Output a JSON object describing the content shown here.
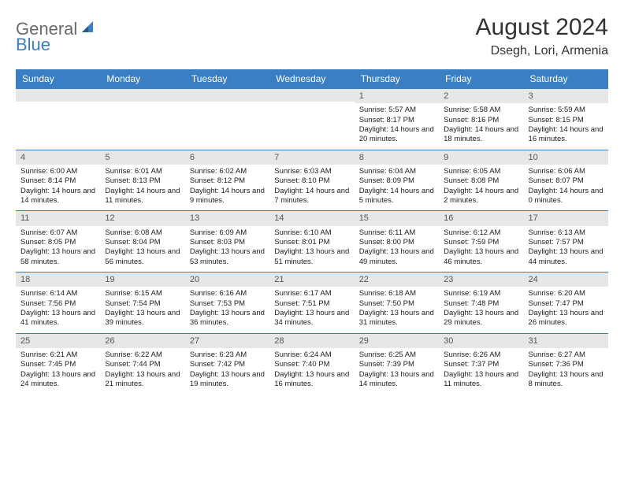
{
  "logo": {
    "text1": "General",
    "text2": "Blue"
  },
  "title": "August 2024",
  "location": "Dsegh, Lori, Armenia",
  "colors": {
    "header_bg": "#3a7fc4",
    "header_fg": "#ffffff",
    "daynum_bg": "#e7e7e7",
    "border": "#3a7fc4",
    "text": "#222222"
  },
  "day_names": [
    "Sunday",
    "Monday",
    "Tuesday",
    "Wednesday",
    "Thursday",
    "Friday",
    "Saturday"
  ],
  "weeks": [
    [
      {
        "n": "",
        "sr": "",
        "ss": "",
        "dl": ""
      },
      {
        "n": "",
        "sr": "",
        "ss": "",
        "dl": ""
      },
      {
        "n": "",
        "sr": "",
        "ss": "",
        "dl": ""
      },
      {
        "n": "",
        "sr": "",
        "ss": "",
        "dl": ""
      },
      {
        "n": "1",
        "sr": "Sunrise: 5:57 AM",
        "ss": "Sunset: 8:17 PM",
        "dl": "Daylight: 14 hours and 20 minutes."
      },
      {
        "n": "2",
        "sr": "Sunrise: 5:58 AM",
        "ss": "Sunset: 8:16 PM",
        "dl": "Daylight: 14 hours and 18 minutes."
      },
      {
        "n": "3",
        "sr": "Sunrise: 5:59 AM",
        "ss": "Sunset: 8:15 PM",
        "dl": "Daylight: 14 hours and 16 minutes."
      }
    ],
    [
      {
        "n": "4",
        "sr": "Sunrise: 6:00 AM",
        "ss": "Sunset: 8:14 PM",
        "dl": "Daylight: 14 hours and 14 minutes."
      },
      {
        "n": "5",
        "sr": "Sunrise: 6:01 AM",
        "ss": "Sunset: 8:13 PM",
        "dl": "Daylight: 14 hours and 11 minutes."
      },
      {
        "n": "6",
        "sr": "Sunrise: 6:02 AM",
        "ss": "Sunset: 8:12 PM",
        "dl": "Daylight: 14 hours and 9 minutes."
      },
      {
        "n": "7",
        "sr": "Sunrise: 6:03 AM",
        "ss": "Sunset: 8:10 PM",
        "dl": "Daylight: 14 hours and 7 minutes."
      },
      {
        "n": "8",
        "sr": "Sunrise: 6:04 AM",
        "ss": "Sunset: 8:09 PM",
        "dl": "Daylight: 14 hours and 5 minutes."
      },
      {
        "n": "9",
        "sr": "Sunrise: 6:05 AM",
        "ss": "Sunset: 8:08 PM",
        "dl": "Daylight: 14 hours and 2 minutes."
      },
      {
        "n": "10",
        "sr": "Sunrise: 6:06 AM",
        "ss": "Sunset: 8:07 PM",
        "dl": "Daylight: 14 hours and 0 minutes."
      }
    ],
    [
      {
        "n": "11",
        "sr": "Sunrise: 6:07 AM",
        "ss": "Sunset: 8:05 PM",
        "dl": "Daylight: 13 hours and 58 minutes."
      },
      {
        "n": "12",
        "sr": "Sunrise: 6:08 AM",
        "ss": "Sunset: 8:04 PM",
        "dl": "Daylight: 13 hours and 56 minutes."
      },
      {
        "n": "13",
        "sr": "Sunrise: 6:09 AM",
        "ss": "Sunset: 8:03 PM",
        "dl": "Daylight: 13 hours and 53 minutes."
      },
      {
        "n": "14",
        "sr": "Sunrise: 6:10 AM",
        "ss": "Sunset: 8:01 PM",
        "dl": "Daylight: 13 hours and 51 minutes."
      },
      {
        "n": "15",
        "sr": "Sunrise: 6:11 AM",
        "ss": "Sunset: 8:00 PM",
        "dl": "Daylight: 13 hours and 49 minutes."
      },
      {
        "n": "16",
        "sr": "Sunrise: 6:12 AM",
        "ss": "Sunset: 7:59 PM",
        "dl": "Daylight: 13 hours and 46 minutes."
      },
      {
        "n": "17",
        "sr": "Sunrise: 6:13 AM",
        "ss": "Sunset: 7:57 PM",
        "dl": "Daylight: 13 hours and 44 minutes."
      }
    ],
    [
      {
        "n": "18",
        "sr": "Sunrise: 6:14 AM",
        "ss": "Sunset: 7:56 PM",
        "dl": "Daylight: 13 hours and 41 minutes."
      },
      {
        "n": "19",
        "sr": "Sunrise: 6:15 AM",
        "ss": "Sunset: 7:54 PM",
        "dl": "Daylight: 13 hours and 39 minutes."
      },
      {
        "n": "20",
        "sr": "Sunrise: 6:16 AM",
        "ss": "Sunset: 7:53 PM",
        "dl": "Daylight: 13 hours and 36 minutes."
      },
      {
        "n": "21",
        "sr": "Sunrise: 6:17 AM",
        "ss": "Sunset: 7:51 PM",
        "dl": "Daylight: 13 hours and 34 minutes."
      },
      {
        "n": "22",
        "sr": "Sunrise: 6:18 AM",
        "ss": "Sunset: 7:50 PM",
        "dl": "Daylight: 13 hours and 31 minutes."
      },
      {
        "n": "23",
        "sr": "Sunrise: 6:19 AM",
        "ss": "Sunset: 7:48 PM",
        "dl": "Daylight: 13 hours and 29 minutes."
      },
      {
        "n": "24",
        "sr": "Sunrise: 6:20 AM",
        "ss": "Sunset: 7:47 PM",
        "dl": "Daylight: 13 hours and 26 minutes."
      }
    ],
    [
      {
        "n": "25",
        "sr": "Sunrise: 6:21 AM",
        "ss": "Sunset: 7:45 PM",
        "dl": "Daylight: 13 hours and 24 minutes."
      },
      {
        "n": "26",
        "sr": "Sunrise: 6:22 AM",
        "ss": "Sunset: 7:44 PM",
        "dl": "Daylight: 13 hours and 21 minutes."
      },
      {
        "n": "27",
        "sr": "Sunrise: 6:23 AM",
        "ss": "Sunset: 7:42 PM",
        "dl": "Daylight: 13 hours and 19 minutes."
      },
      {
        "n": "28",
        "sr": "Sunrise: 6:24 AM",
        "ss": "Sunset: 7:40 PM",
        "dl": "Daylight: 13 hours and 16 minutes."
      },
      {
        "n": "29",
        "sr": "Sunrise: 6:25 AM",
        "ss": "Sunset: 7:39 PM",
        "dl": "Daylight: 13 hours and 14 minutes."
      },
      {
        "n": "30",
        "sr": "Sunrise: 6:26 AM",
        "ss": "Sunset: 7:37 PM",
        "dl": "Daylight: 13 hours and 11 minutes."
      },
      {
        "n": "31",
        "sr": "Sunrise: 6:27 AM",
        "ss": "Sunset: 7:36 PM",
        "dl": "Daylight: 13 hours and 8 minutes."
      }
    ]
  ]
}
